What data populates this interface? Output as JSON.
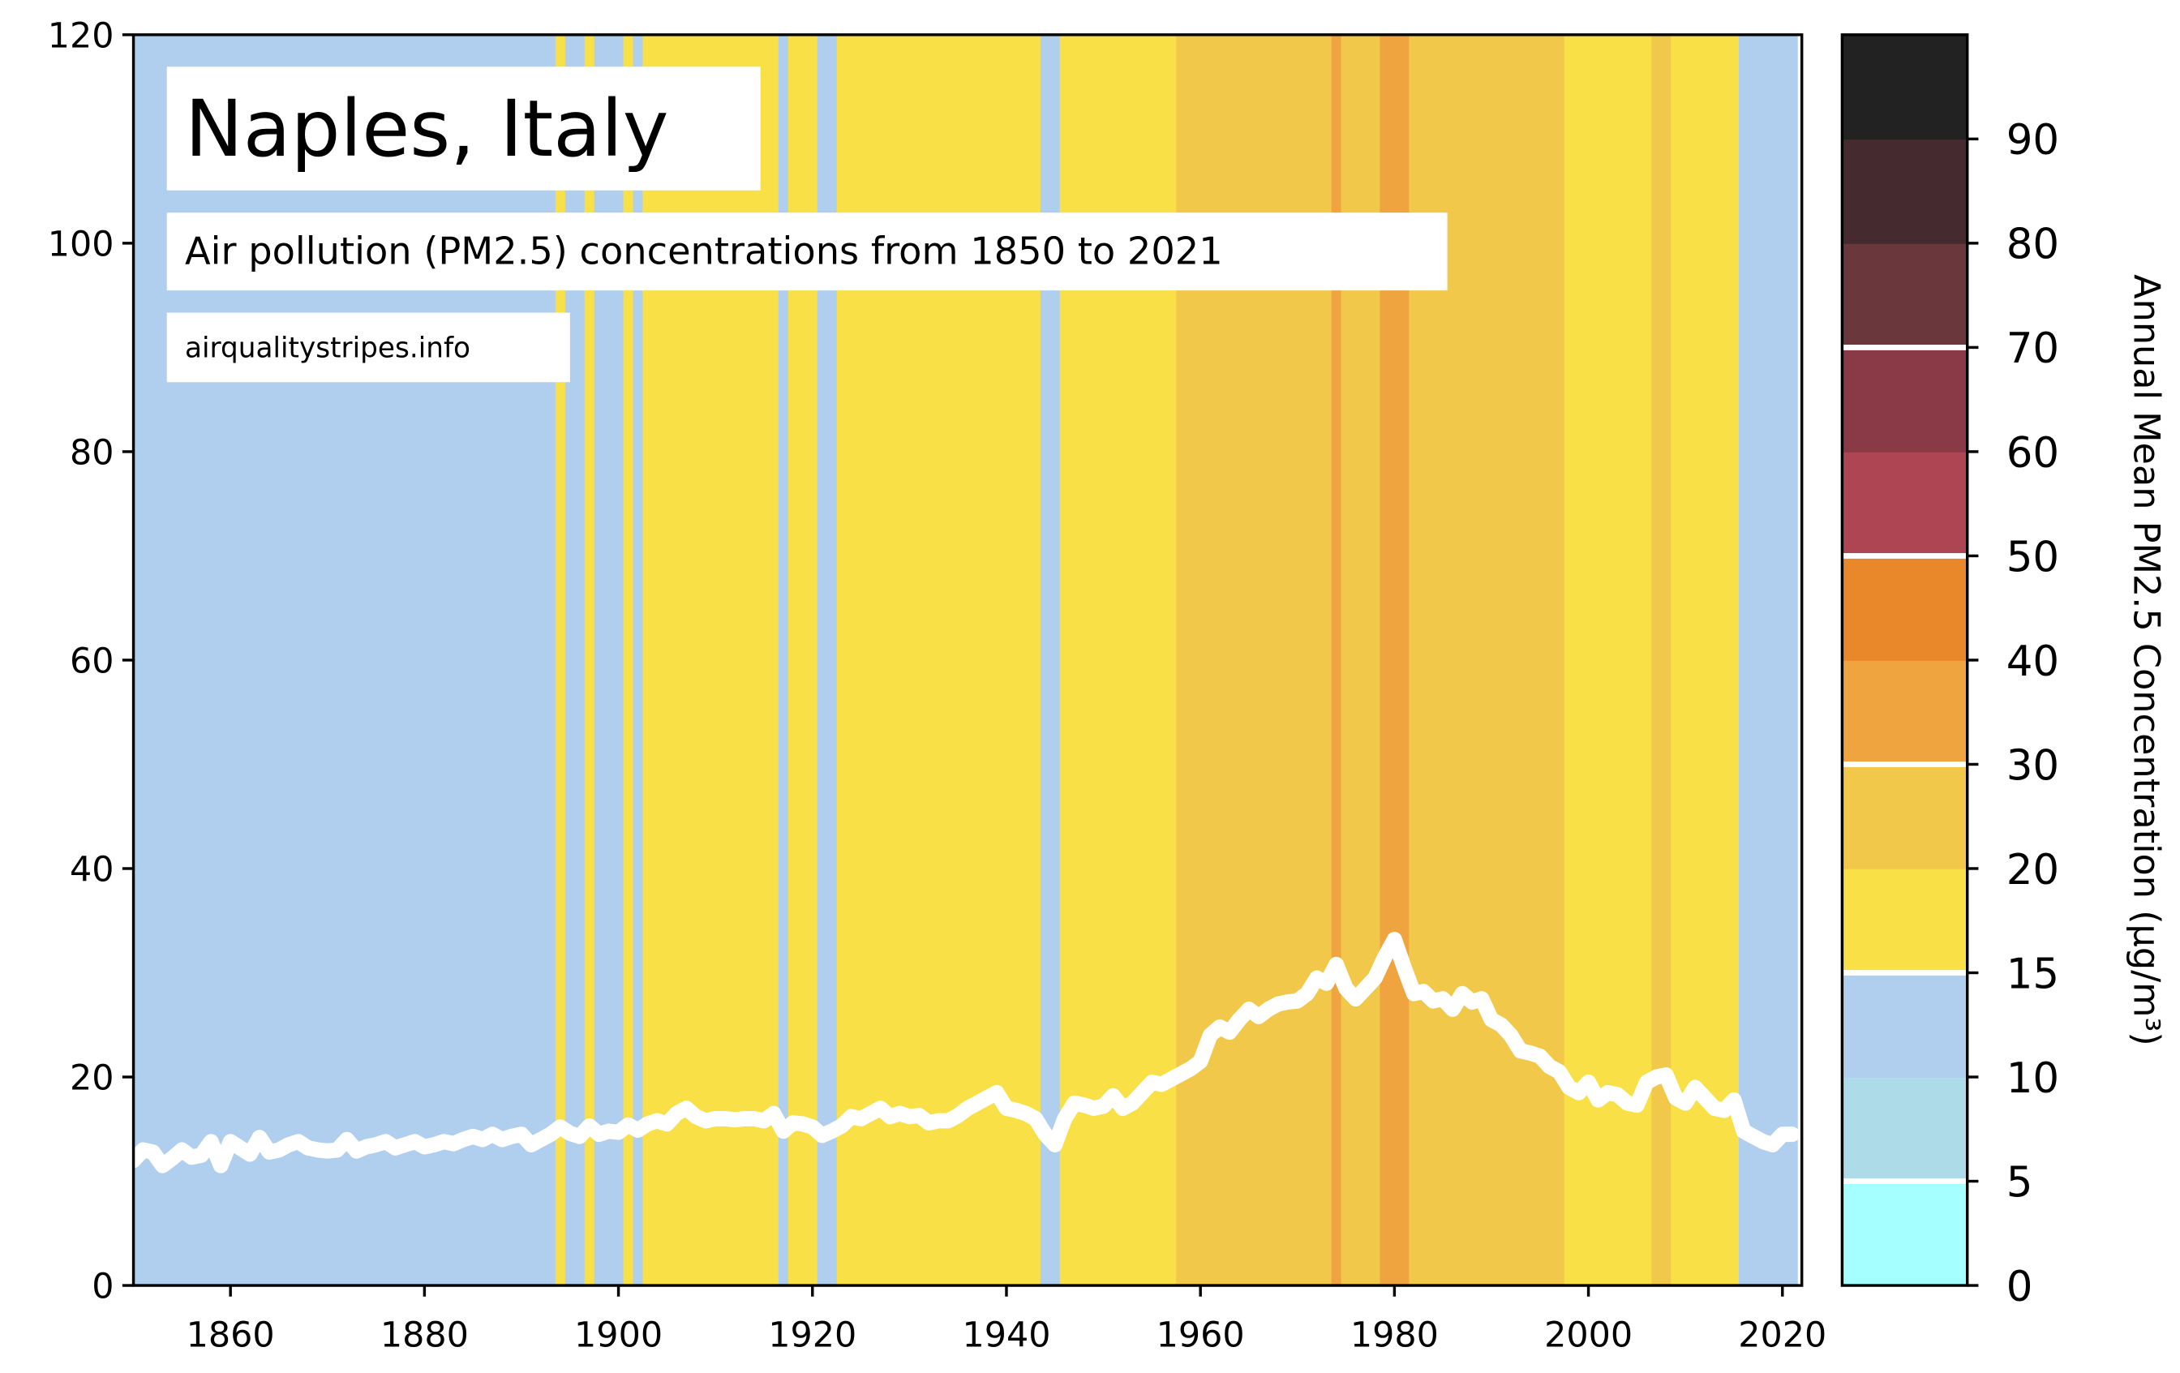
{
  "chart_data": {
    "type": "stripes",
    "title": "Naples, Italy",
    "subtitle": "Air pollution (PM2.5) concentrations from 1850 to 2021",
    "source": "airqualitystripes.info",
    "x": [
      1850,
      1851,
      1852,
      1853,
      1854,
      1855,
      1856,
      1857,
      1858,
      1859,
      1860,
      1861,
      1862,
      1863,
      1864,
      1865,
      1866,
      1867,
      1868,
      1869,
      1870,
      1871,
      1872,
      1873,
      1874,
      1875,
      1876,
      1877,
      1878,
      1879,
      1880,
      1881,
      1882,
      1883,
      1884,
      1885,
      1886,
      1887,
      1888,
      1889,
      1890,
      1891,
      1892,
      1893,
      1894,
      1895,
      1896,
      1897,
      1898,
      1899,
      1900,
      1901,
      1902,
      1903,
      1904,
      1905,
      1906,
      1907,
      1908,
      1909,
      1910,
      1911,
      1912,
      1913,
      1914,
      1915,
      1916,
      1917,
      1918,
      1919,
      1920,
      1921,
      1922,
      1923,
      1924,
      1925,
      1926,
      1927,
      1928,
      1929,
      1930,
      1931,
      1932,
      1933,
      1934,
      1935,
      1936,
      1937,
      1938,
      1939,
      1940,
      1941,
      1942,
      1943,
      1944,
      1945,
      1946,
      1947,
      1948,
      1949,
      1950,
      1951,
      1952,
      1953,
      1954,
      1955,
      1956,
      1957,
      1958,
      1959,
      1960,
      1961,
      1962,
      1963,
      1964,
      1965,
      1966,
      1967,
      1968,
      1969,
      1970,
      1971,
      1972,
      1973,
      1974,
      1975,
      1976,
      1977,
      1978,
      1979,
      1980,
      1981,
      1982,
      1983,
      1984,
      1985,
      1986,
      1987,
      1988,
      1989,
      1990,
      1991,
      1992,
      1993,
      1994,
      1995,
      1996,
      1997,
      1998,
      1999,
      2000,
      2001,
      2002,
      2003,
      2004,
      2005,
      2006,
      2007,
      2008,
      2009,
      2010,
      2011,
      2012,
      2013,
      2014,
      2015,
      2016,
      2017,
      2018,
      2019,
      2020,
      2021
    ],
    "values": [
      12,
      13,
      12.8,
      11.5,
      12.2,
      13,
      12.3,
      12.5,
      13.8,
      11.5,
      13.8,
      13.2,
      12.6,
      14.2,
      12.8,
      13,
      13.5,
      13.8,
      13.2,
      13,
      12.9,
      13,
      14,
      12.9,
      13.3,
      13.5,
      13.8,
      13.2,
      13.5,
      13.8,
      13.3,
      13.5,
      13.8,
      13.6,
      14,
      14.3,
      14,
      14.5,
      14,
      14.3,
      14.5,
      13.5,
      14,
      14.5,
      15.2,
      14.6,
      14.3,
      15.3,
      14.5,
      14.8,
      14.7,
      15.4,
      14.9,
      15.5,
      15.8,
      15.5,
      16.5,
      17,
      16.2,
      15.8,
      16,
      16,
      15.9,
      16,
      16,
      15.8,
      16.5,
      14.8,
      15.6,
      15.5,
      15.2,
      14.4,
      14.8,
      15.3,
      16.2,
      16,
      16.5,
      17,
      16.2,
      16.5,
      16.2,
      16.3,
      15.6,
      15.8,
      15.8,
      16.3,
      17,
      17.5,
      18,
      18.5,
      17,
      16.8,
      16.5,
      16,
      14.5,
      13.5,
      16,
      17.5,
      17.3,
      17,
      17.2,
      18.2,
      17,
      17.5,
      18.5,
      19.5,
      19.3,
      19.8,
      20.3,
      20.8,
      21.5,
      24,
      24.8,
      24.3,
      25.5,
      26.5,
      25.8,
      26.5,
      27,
      27.2,
      27.3,
      28,
      29.5,
      29,
      30.8,
      28.5,
      27.5,
      28.5,
      29.5,
      31.5,
      33.2,
      30.5,
      28,
      28.2,
      27.3,
      27.5,
      26.5,
      28,
      27.2,
      27.5,
      25.5,
      25,
      24,
      22.5,
      22.3,
      22,
      21,
      20.5,
      19,
      18.5,
      19.5,
      17.8,
      18.5,
      18.3,
      17.5,
      17.3,
      19.5,
      20,
      20.2,
      18,
      17.5,
      19,
      18,
      17,
      16.8,
      17.8,
      14.8,
      14.3,
      13.8,
      13.5,
      14.5,
      14.5
    ],
    "line_color": "#ffffff",
    "xlim": [
      1850,
      2022
    ],
    "xticks": [
      1860,
      1880,
      1900,
      1920,
      1940,
      1960,
      1980,
      2000,
      2020
    ],
    "ylim": [
      0,
      120
    ],
    "yticks": [
      0,
      20,
      40,
      60,
      80,
      100,
      120
    ],
    "colorbar": {
      "label": "Annual Mean PM2.5 Concentration (μg/m³)",
      "bounds": [
        0,
        5,
        10,
        15,
        20,
        30,
        40,
        50,
        60,
        70,
        80,
        90,
        100
      ],
      "colors": [
        "#a6ffff",
        "#aedbe8",
        "#b0cfee",
        "#f8e046",
        "#f2c84b",
        "#f0a43f",
        "#e8882a",
        "#ae4553",
        "#8a3a46",
        "#6a373c",
        "#452b2f",
        "#222222"
      ],
      "ticks": [
        0,
        5,
        10,
        15,
        20,
        30,
        40,
        50,
        60,
        70,
        80,
        90
      ],
      "guidelines": [
        5,
        15,
        30,
        50,
        70
      ]
    }
  }
}
